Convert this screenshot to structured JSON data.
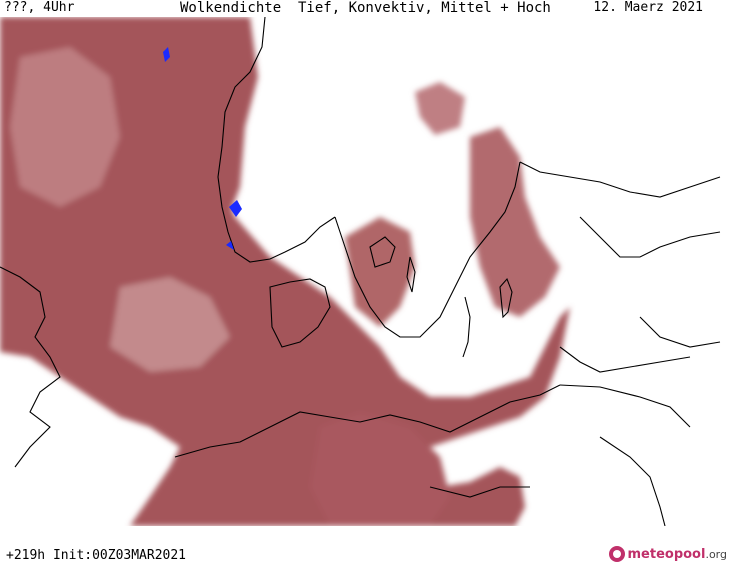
{
  "header": {
    "left_label": "???, 4Uhr",
    "title": "Wolkendichte  Tief, Konvektiv, Mittel + Hoch",
    "date": "12. Maerz 2021"
  },
  "footer": {
    "run_info": "+219h Init:00Z03MAR2021",
    "logo_text": "meteopool",
    "logo_suffix": ".org"
  },
  "colors": {
    "cloud_dark": "#9c4a50",
    "cloud_mid": "#b26a6e",
    "cloud_light": "#cc9596",
    "coastline": "#000000",
    "precip_blue": "#1a2bff"
  }
}
